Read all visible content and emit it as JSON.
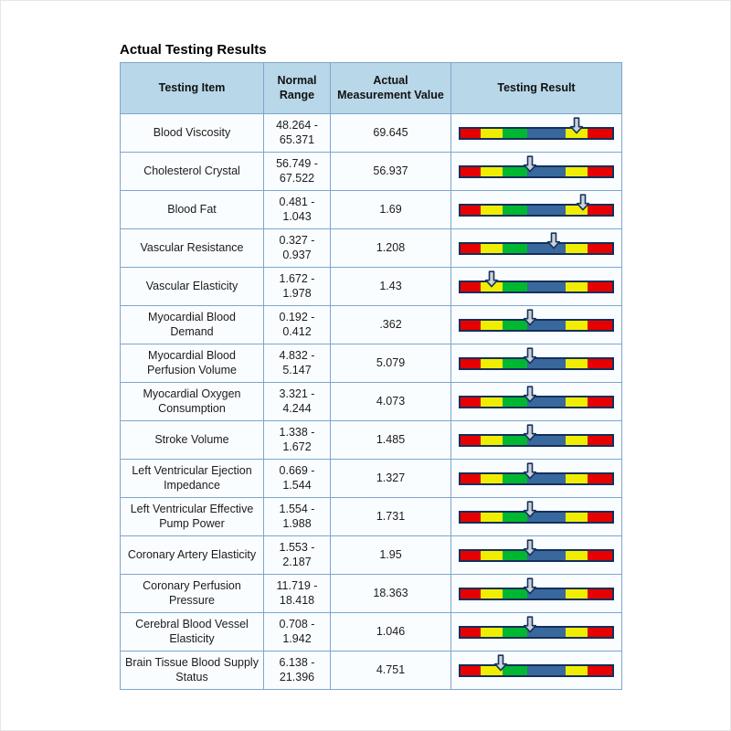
{
  "page": {
    "title": "Actual Testing Results"
  },
  "table": {
    "headers": [
      "Testing Item",
      "Normal Range",
      "Actual Measurement Value",
      "Testing Result"
    ],
    "rows": [
      {
        "item": "Blood Viscosity",
        "range": "48.264 - 65.371",
        "value": "69.645",
        "pointer_percent": 76
      },
      {
        "item": "Cholesterol Crystal",
        "range": "56.749 - 67.522",
        "value": "56.937",
        "pointer_percent": 46
      },
      {
        "item": "Blood Fat",
        "range": "0.481 - 1.043",
        "value": "1.69",
        "pointer_percent": 80
      },
      {
        "item": "Vascular Resistance",
        "range": "0.327 - 0.937",
        "value": "1.208",
        "pointer_percent": 61
      },
      {
        "item": "Vascular Elasticity",
        "range": "1.672 - 1.978",
        "value": "1.43",
        "pointer_percent": 21
      },
      {
        "item": "Myocardial Blood Demand",
        "range": "0.192 - 0.412",
        "value": ".362",
        "pointer_percent": 46
      },
      {
        "item": "Myocardial Blood Perfusion Volume",
        "range": "4.832 - 5.147",
        "value": "5.079",
        "pointer_percent": 46
      },
      {
        "item": "Myocardial Oxygen Consumption",
        "range": "3.321 - 4.244",
        "value": "4.073",
        "pointer_percent": 46
      },
      {
        "item": "Stroke Volume",
        "range": "1.338 - 1.672",
        "value": "1.485",
        "pointer_percent": 46
      },
      {
        "item": "Left Ventricular Ejection Impedance",
        "range": "0.669 - 1.544",
        "value": "1.327",
        "pointer_percent": 46
      },
      {
        "item": "Left Ventricular Effective Pump Power",
        "range": "1.554 - 1.988",
        "value": "1.731",
        "pointer_percent": 46
      },
      {
        "item": "Coronary Artery Elasticity",
        "range": "1.553 - 2.187",
        "value": "1.95",
        "pointer_percent": 46
      },
      {
        "item": "Coronary Perfusion Pressure",
        "range": "11.719 - 18.418",
        "value": "18.363",
        "pointer_percent": 46
      },
      {
        "item": "Cerebral Blood Vessel Elasticity",
        "range": "0.708 - 1.942",
        "value": "1.046",
        "pointer_percent": 46
      },
      {
        "item": "Brain Tissue Blood Supply Status",
        "range": "6.138 - 21.396",
        "value": "4.751",
        "pointer_percent": 27
      }
    ]
  },
  "gauge": {
    "arrow_icon": "down-arrow-icon",
    "arrow_fill": "#ccd3da",
    "arrow_outline": "#16335f",
    "bar_border": "#132f5c",
    "segments": [
      {
        "name": "segment-red-left",
        "color": "#e60000",
        "width": 13
      },
      {
        "name": "segment-yellow-left",
        "color": "#f0ee00",
        "width": 15
      },
      {
        "name": "segment-green",
        "color": "#00b830",
        "width": 16
      },
      {
        "name": "segment-blue",
        "color": "#39689d",
        "width": 25
      },
      {
        "name": "segment-yellow-right",
        "color": "#f0ee00",
        "width": 15
      },
      {
        "name": "segment-red-right",
        "color": "#e60000",
        "width": 16
      }
    ]
  }
}
